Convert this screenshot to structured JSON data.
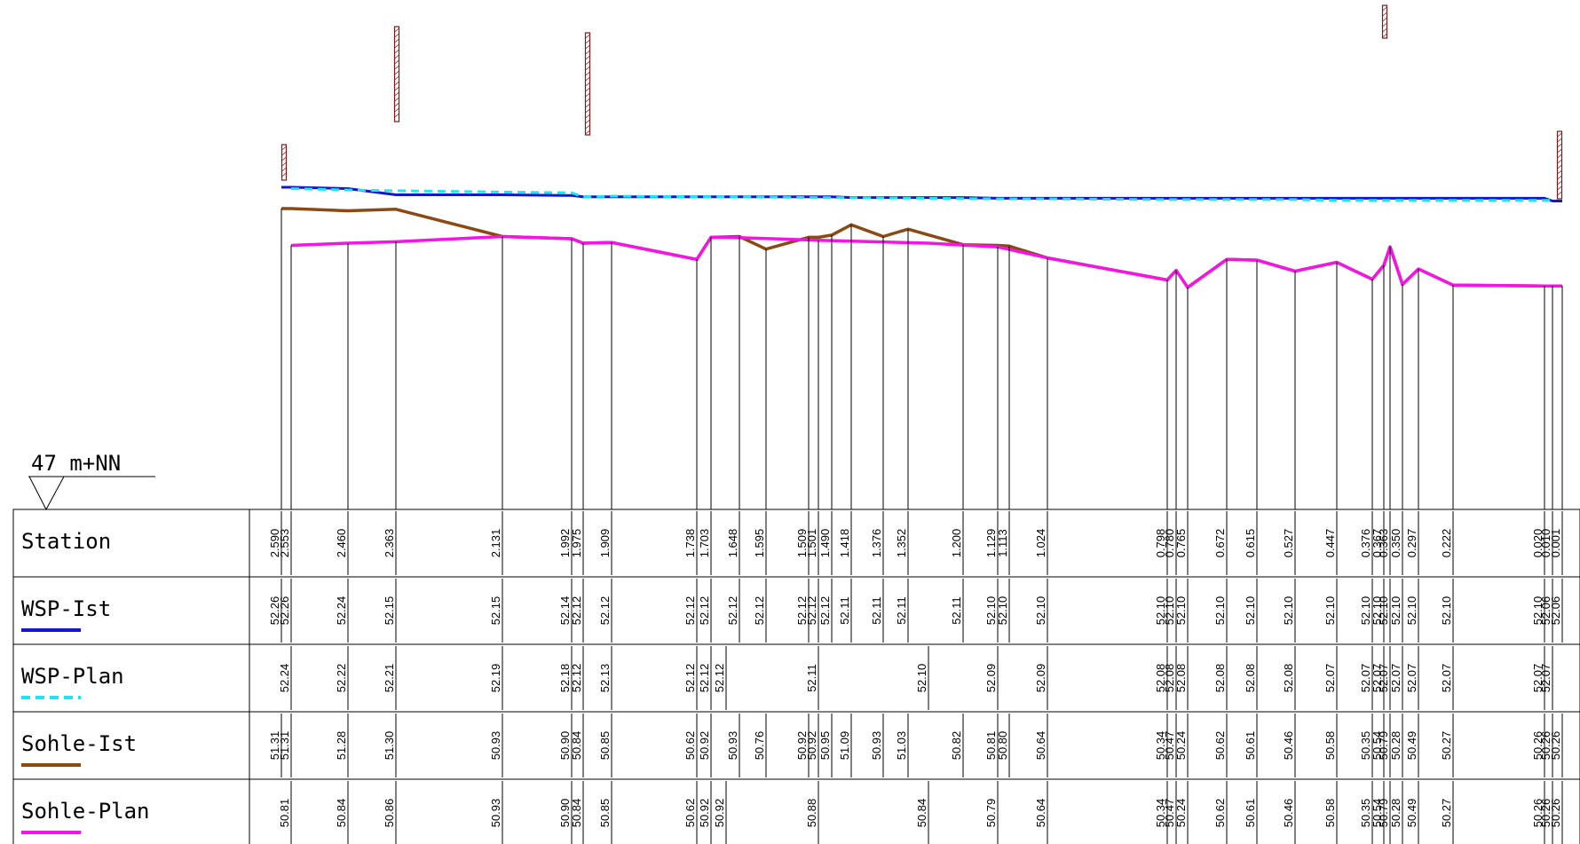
{
  "chart_data": {
    "type": "line",
    "datum_label": "47 m+NN",
    "rows": [
      {
        "key": "station",
        "label": "Station",
        "legend_color": ""
      },
      {
        "key": "wsp_ist",
        "label": "WSP-Ist",
        "legend_color": "#1414d2"
      },
      {
        "key": "wsp_plan",
        "label": "WSP-Plan",
        "legend_color": "#1ee6f0"
      },
      {
        "key": "sohle_ist",
        "label": "Sohle-Ist",
        "legend_color": "#8b4a14"
      },
      {
        "key": "sohle_plan",
        "label": "Sohle-Plan",
        "legend_color": "#f514e6"
      }
    ],
    "series": [
      {
        "name": "WSP-Ist",
        "color": "#1414d2",
        "dash": false
      },
      {
        "name": "WSP-Plan",
        "color": "#1ee6f0",
        "dash": true
      },
      {
        "name": "Sohle-Ist",
        "color": "#8b4a14",
        "dash": false
      },
      {
        "name": "Sohle-Plan",
        "color": "#f514e6",
        "dash": false
      }
    ],
    "columns": [
      {
        "station": "2.590",
        "wsp_ist": "52.26",
        "wsp_plan": "",
        "sohle_ist": "51.31",
        "sohle_plan": ""
      },
      {
        "station": "2.553",
        "wsp_ist": "52.26",
        "wsp_plan": "52.24",
        "sohle_ist": "51.31",
        "sohle_plan": "50.81"
      },
      {
        "station": "2.460",
        "wsp_ist": "52.24",
        "wsp_plan": "52.22",
        "sohle_ist": "51.28",
        "sohle_plan": "50.84"
      },
      {
        "station": "2.363",
        "wsp_ist": "52.15",
        "wsp_plan": "52.21",
        "sohle_ist": "51.30",
        "sohle_plan": "50.86"
      },
      {
        "station": "2.131",
        "wsp_ist": "52.15",
        "wsp_plan": "52.19",
        "sohle_ist": "50.93",
        "sohle_plan": "50.93"
      },
      {
        "station": "1.992",
        "wsp_ist": "52.14",
        "wsp_plan": "52.18",
        "sohle_ist": "50.90",
        "sohle_plan": "50.90"
      },
      {
        "station": "1.975",
        "wsp_ist": "52.12",
        "wsp_plan": "52.12",
        "sohle_ist": "50.84",
        "sohle_plan": "50.84"
      },
      {
        "station": "1.909",
        "wsp_ist": "52.12",
        "wsp_plan": "52.13",
        "sohle_ist": "50.85",
        "sohle_plan": "50.85"
      },
      {
        "station": "1.738",
        "wsp_ist": "52.12",
        "wsp_plan": "52.12",
        "sohle_ist": "50.62",
        "sohle_plan": "50.62"
      },
      {
        "station": "1.703",
        "wsp_ist": "52.12",
        "wsp_plan": "52.12",
        "sohle_ist": "50.92",
        "sohle_plan": "50.92"
      },
      {
        "station": "",
        "wsp_ist": "",
        "wsp_plan": "52.12",
        "sohle_ist": "",
        "sohle_plan": "50.92"
      },
      {
        "station": "1.648",
        "wsp_ist": "52.12",
        "wsp_plan": "",
        "sohle_ist": "50.93",
        "sohle_plan": ""
      },
      {
        "station": "1.595",
        "wsp_ist": "52.12",
        "wsp_plan": "",
        "sohle_ist": "50.76",
        "sohle_plan": ""
      },
      {
        "station": "1.509",
        "wsp_ist": "52.12",
        "wsp_plan": "",
        "sohle_ist": "50.92",
        "sohle_plan": ""
      },
      {
        "station": "1.501",
        "wsp_ist": "52.12",
        "wsp_plan": "52.11",
        "sohle_ist": "50.92",
        "sohle_plan": "50.88"
      },
      {
        "station": "1.490",
        "wsp_ist": "52.12",
        "wsp_plan": "",
        "sohle_ist": "50.95",
        "sohle_plan": ""
      },
      {
        "station": "1.418",
        "wsp_ist": "52.11",
        "wsp_plan": "",
        "sohle_ist": "51.09",
        "sohle_plan": ""
      },
      {
        "station": "1.376",
        "wsp_ist": "52.11",
        "wsp_plan": "",
        "sohle_ist": "50.93",
        "sohle_plan": ""
      },
      {
        "station": "1.352",
        "wsp_ist": "52.11",
        "wsp_plan": "",
        "sohle_ist": "51.03",
        "sohle_plan": ""
      },
      {
        "station": "",
        "wsp_ist": "",
        "wsp_plan": "52.10",
        "sohle_ist": "",
        "sohle_plan": "50.84"
      },
      {
        "station": "1.200",
        "wsp_ist": "52.11",
        "wsp_plan": "",
        "sohle_ist": "50.82",
        "sohle_plan": ""
      },
      {
        "station": "1.129",
        "wsp_ist": "52.10",
        "wsp_plan": "52.09",
        "sohle_ist": "50.81",
        "sohle_plan": "50.79"
      },
      {
        "station": "1.113",
        "wsp_ist": "52.10",
        "wsp_plan": "",
        "sohle_ist": "50.80",
        "sohle_plan": ""
      },
      {
        "station": "1.024",
        "wsp_ist": "52.10",
        "wsp_plan": "52.09",
        "sohle_ist": "50.64",
        "sohle_plan": "50.64"
      },
      {
        "station": "0.798",
        "wsp_ist": "52.10",
        "wsp_plan": "52.08",
        "sohle_ist": "50.34",
        "sohle_plan": "50.34"
      },
      {
        "station": "0.780",
        "wsp_ist": "52.10",
        "wsp_plan": "52.08",
        "sohle_ist": "50.47",
        "sohle_plan": "50.47"
      },
      {
        "station": "0.765",
        "wsp_ist": "52.10",
        "wsp_plan": "52.08",
        "sohle_ist": "50.24",
        "sohle_plan": "50.24"
      },
      {
        "station": "0.672",
        "wsp_ist": "52.10",
        "wsp_plan": "52.08",
        "sohle_ist": "50.62",
        "sohle_plan": "50.62"
      },
      {
        "station": "0.615",
        "wsp_ist": "52.10",
        "wsp_plan": "52.08",
        "sohle_ist": "50.61",
        "sohle_plan": "50.61"
      },
      {
        "station": "0.527",
        "wsp_ist": "52.10",
        "wsp_plan": "52.08",
        "sohle_ist": "50.46",
        "sohle_plan": "50.46"
      },
      {
        "station": "0.447",
        "wsp_ist": "52.10",
        "wsp_plan": "52.07",
        "sohle_ist": "50.58",
        "sohle_plan": "50.58"
      },
      {
        "station": "0.376",
        "wsp_ist": "52.10",
        "wsp_plan": "52.07",
        "sohle_ist": "50.35",
        "sohle_plan": "50.35"
      },
      {
        "station": "0.367",
        "wsp_ist": "52.10",
        "wsp_plan": "52.07",
        "sohle_ist": "50.54",
        "sohle_plan": "50.54"
      },
      {
        "station": "0.363",
        "wsp_ist": "52.10",
        "wsp_plan": "52.07",
        "sohle_ist": "50.79",
        "sohle_plan": "50.79"
      },
      {
        "station": "0.350",
        "wsp_ist": "52.10",
        "wsp_plan": "52.07",
        "sohle_ist": "50.28",
        "sohle_plan": "50.28"
      },
      {
        "station": "0.297",
        "wsp_ist": "52.10",
        "wsp_plan": "52.07",
        "sohle_ist": "50.49",
        "sohle_plan": "50.49"
      },
      {
        "station": "0.222",
        "wsp_ist": "52.10",
        "wsp_plan": "52.07",
        "sohle_ist": "50.27",
        "sohle_plan": "50.27"
      },
      {
        "station": "0.020",
        "wsp_ist": "52.10",
        "wsp_plan": "52.07",
        "sohle_ist": "50.26",
        "sohle_plan": "50.26"
      },
      {
        "station": "0.010",
        "wsp_ist": "52.06",
        "wsp_plan": "52.07",
        "sohle_ist": "50.26",
        "sohle_plan": "50.26"
      },
      {
        "station": "0.001",
        "wsp_ist": "52.06",
        "wsp_plan": "",
        "sohle_ist": "50.26",
        "sohle_plan": "50.26"
      }
    ]
  }
}
